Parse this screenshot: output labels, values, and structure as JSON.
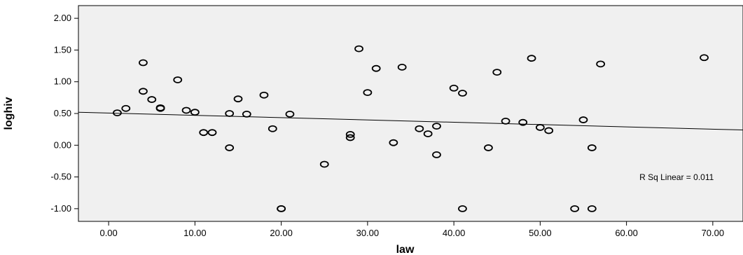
{
  "chart_data": {
    "type": "scatter",
    "xlabel": "law",
    "ylabel": "loghiv",
    "xlim": [
      -3.5,
      73.5
    ],
    "ylim": [
      -1.2,
      2.2
    ],
    "xticks": [
      0,
      10,
      20,
      30,
      40,
      50,
      60,
      70
    ],
    "yticks": [
      -1,
      -0.5,
      0,
      0.5,
      1,
      1.5,
      2
    ],
    "xtick_labels": [
      "0.00",
      "10.00",
      "20.00",
      "30.00",
      "40.00",
      "50.00",
      "60.00",
      "70.00"
    ],
    "ytick_labels": [
      "-1.00",
      "-0.50",
      "0.00",
      "0.50",
      "1.00",
      "1.50",
      "2.00"
    ],
    "grid": false,
    "points": [
      {
        "x": 1,
        "y": 0.51
      },
      {
        "x": 2,
        "y": 0.58
      },
      {
        "x": 4,
        "y": 1.3
      },
      {
        "x": 4,
        "y": 0.85
      },
      {
        "x": 5,
        "y": 0.72
      },
      {
        "x": 6,
        "y": 0.59
      },
      {
        "x": 6,
        "y": 0.58
      },
      {
        "x": 8,
        "y": 1.03
      },
      {
        "x": 9,
        "y": 0.55
      },
      {
        "x": 10,
        "y": 0.52
      },
      {
        "x": 11,
        "y": 0.2
      },
      {
        "x": 12,
        "y": 0.2
      },
      {
        "x": 14,
        "y": 0.5
      },
      {
        "x": 14,
        "y": -0.04
      },
      {
        "x": 15,
        "y": 0.73
      },
      {
        "x": 16,
        "y": 0.49
      },
      {
        "x": 18,
        "y": 0.79
      },
      {
        "x": 19,
        "y": 0.26
      },
      {
        "x": 20,
        "y": -1.0
      },
      {
        "x": 20,
        "y": -1.0
      },
      {
        "x": 21,
        "y": 0.49
      },
      {
        "x": 25,
        "y": -0.3
      },
      {
        "x": 28,
        "y": 0.17
      },
      {
        "x": 28,
        "y": 0.12
      },
      {
        "x": 29,
        "y": 1.52
      },
      {
        "x": 30,
        "y": 0.83
      },
      {
        "x": 31,
        "y": 1.21
      },
      {
        "x": 33,
        "y": 0.04
      },
      {
        "x": 34,
        "y": 1.23
      },
      {
        "x": 36,
        "y": 0.26
      },
      {
        "x": 37,
        "y": 0.18
      },
      {
        "x": 38,
        "y": 0.3
      },
      {
        "x": 38,
        "y": -0.15
      },
      {
        "x": 40,
        "y": 0.9
      },
      {
        "x": 41,
        "y": 0.82
      },
      {
        "x": 41,
        "y": -1.0
      },
      {
        "x": 44,
        "y": -0.04
      },
      {
        "x": 45,
        "y": 1.15
      },
      {
        "x": 46,
        "y": 0.38
      },
      {
        "x": 48,
        "y": 0.36
      },
      {
        "x": 49,
        "y": 1.37
      },
      {
        "x": 50,
        "y": 0.28
      },
      {
        "x": 51,
        "y": 0.23
      },
      {
        "x": 54,
        "y": -1.0
      },
      {
        "x": 55,
        "y": 0.4
      },
      {
        "x": 56,
        "y": -0.04
      },
      {
        "x": 56,
        "y": -1.0
      },
      {
        "x": 57,
        "y": 1.28
      },
      {
        "x": 69,
        "y": 1.38
      }
    ],
    "fit_line": {
      "type": "linear",
      "x": [
        -3.5,
        73.5
      ],
      "y": [
        0.52,
        0.24
      ]
    },
    "annotations": [
      {
        "text": "R Sq Linear = 0.011",
        "x": 61.5,
        "y": -0.55
      }
    ],
    "colors": {
      "plot_background": "#f0f0f0",
      "marker_stroke": "#000000",
      "line": "#000000"
    }
  }
}
